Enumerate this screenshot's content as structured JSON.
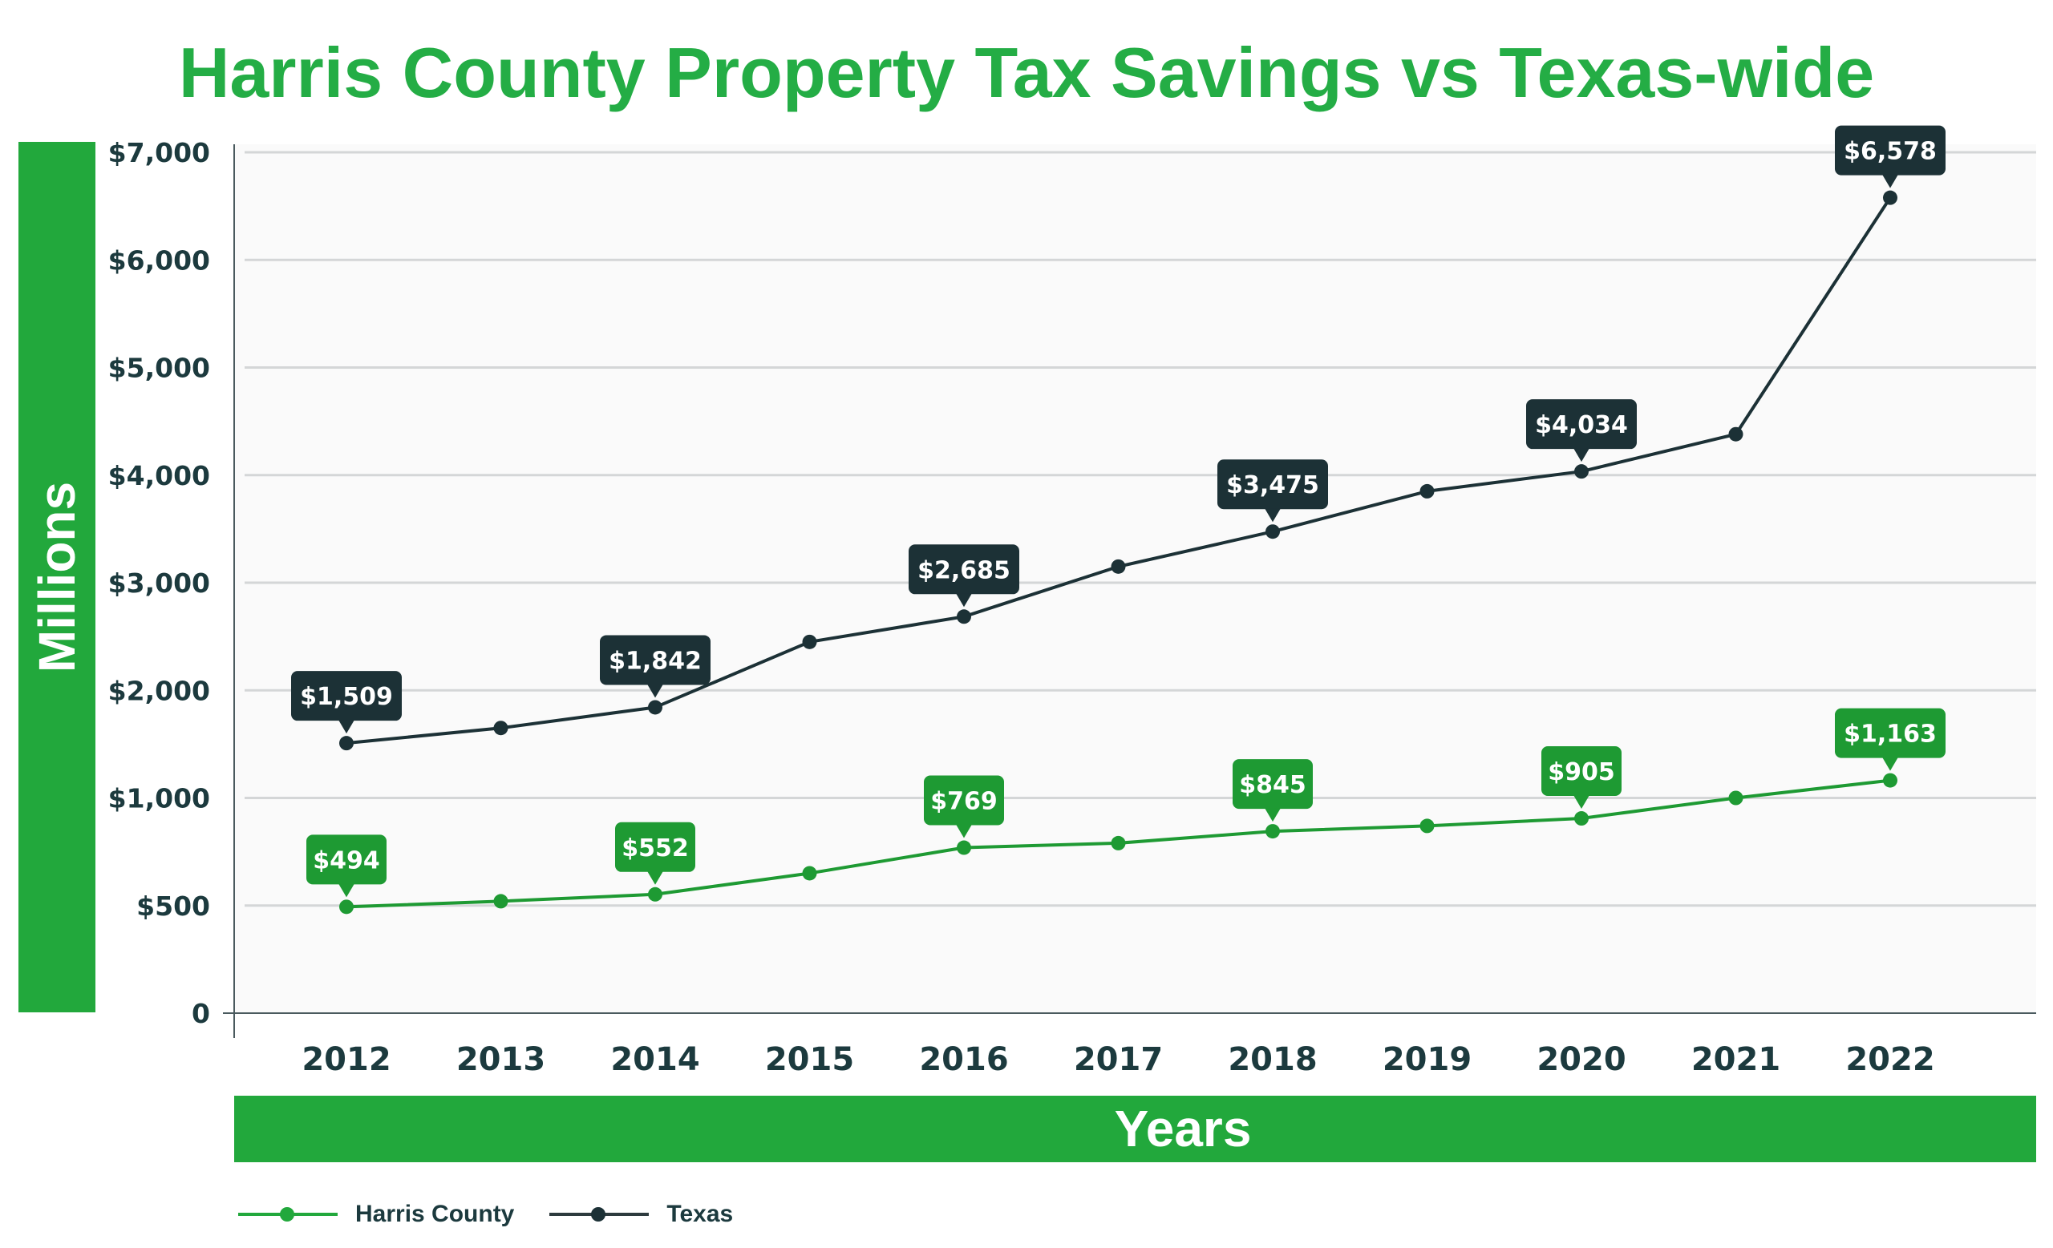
{
  "chart_data": {
    "type": "line",
    "title": "Harris County Property Tax Savings vs Texas-wide",
    "xlabel": "Years",
    "ylabel": "Millions",
    "x": [
      "2012",
      "2013",
      "2014",
      "2015",
      "2016",
      "2017",
      "2018",
      "2019",
      "2020",
      "2021",
      "2022"
    ],
    "y_ticks": [
      0,
      500,
      1000,
      2000,
      3000,
      4000,
      5000,
      6000,
      7000
    ],
    "y_tick_labels": [
      "0",
      "$500",
      "$1,000",
      "$2,000",
      "$3,000",
      "$4,000",
      "$5,000",
      "$6,000",
      "$7,000"
    ],
    "y_scale_note": "tick spacing is uniform but values are non-linear (0, 500, 1000, then steps of 1000)",
    "ylim": [
      0,
      7000
    ],
    "grid": true,
    "legend_position": "bottom-left",
    "series": [
      {
        "name": "Harris County",
        "color": "#1e9a33",
        "values": [
          494,
          520,
          552,
          650,
          769,
          790,
          845,
          870,
          905,
          1000,
          1163
        ],
        "labels": [
          "$494",
          null,
          "$552",
          null,
          "$769",
          null,
          "$845",
          null,
          "$905",
          null,
          "$1,163"
        ]
      },
      {
        "name": "Texas",
        "color": "#1c3136",
        "values": [
          1509,
          1650,
          1842,
          2450,
          2685,
          3150,
          3475,
          3850,
          4034,
          4380,
          6578
        ],
        "labels": [
          "$1,509",
          null,
          "$1,842",
          null,
          "$2,685",
          null,
          "$3,475",
          null,
          "$4,034",
          null,
          "$6,578"
        ]
      }
    ]
  },
  "legend": {
    "items": [
      {
        "label": "Harris County",
        "color": "#1e9a33"
      },
      {
        "label": "Texas",
        "color": "#1c3136"
      }
    ]
  },
  "colors": {
    "title": "#24ad45",
    "axis_band": "#22a83c",
    "tick_text": "#1c3a3e",
    "grid": "#d4d6d7",
    "plot_bg": "#fafafa"
  }
}
